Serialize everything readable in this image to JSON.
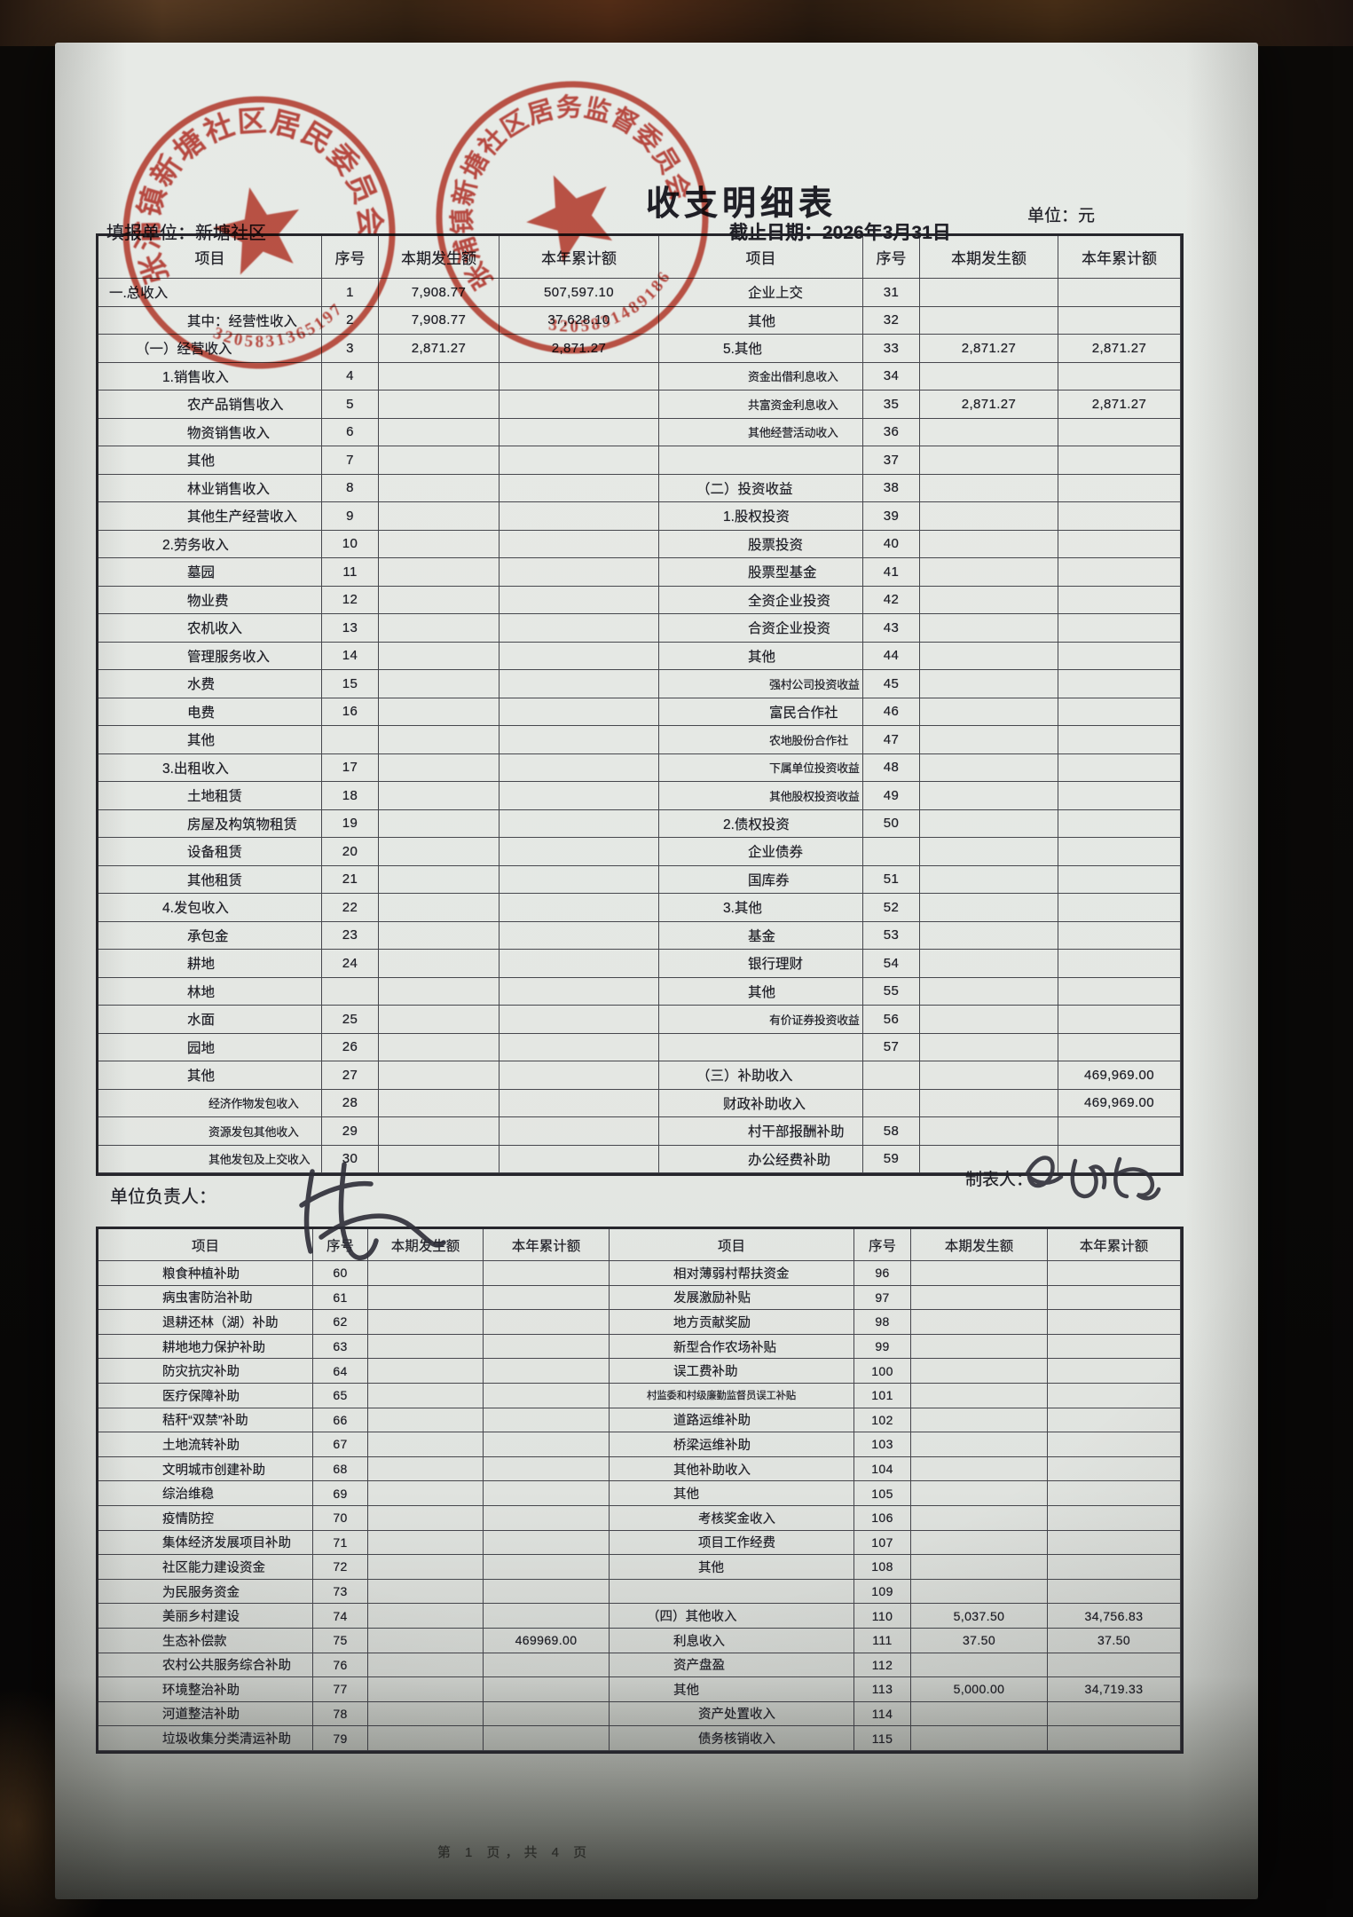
{
  "page": {
    "title": "收支明细表",
    "unit_note": "单位：元",
    "form_unit_label": "填报单位：",
    "form_unit_value": "新塘社区",
    "deadline_label": "截止日期：",
    "deadline_value": "2026年3月31日",
    "manager_label": "单位负责人：",
    "manager_signature": "陈",
    "preparer_label": "制表人：",
    "preparer_signature": "薄丽娟",
    "footer": "第 1 页，共 4 页"
  },
  "colors": {
    "stamp_red": "#c23a2c",
    "ink": "#1f1f26",
    "paper": "#e4e7e3"
  },
  "stamps": [
    {
      "arc_text": "张浦镇新塘社区居民委员会",
      "number": "3205831365197"
    },
    {
      "arc_text": "张浦镇新塘社区居务监督委员会",
      "number": "3205831489186"
    }
  ],
  "row_schema": [
    "item",
    "indent",
    "serial_no",
    "current_amount",
    "ytd_amount"
  ],
  "table1": {
    "headers": [
      "项目",
      "序号",
      "本期发生额",
      "本年累计额",
      "项目",
      "序号",
      "本期发生额",
      "本年累计额"
    ],
    "left_rows": [
      [
        "一.总收入",
        0,
        "1",
        "7,908.77",
        "507,597.10"
      ],
      [
        "其中：经营性收入",
        3,
        "2",
        "7,908.77",
        "37,628.10"
      ],
      [
        "（一）经营收入",
        1,
        "3",
        "2,871.27",
        "2,871.27"
      ],
      [
        "1.销售收入",
        2,
        "4",
        "",
        ""
      ],
      [
        "农产品销售收入",
        3,
        "5",
        "",
        ""
      ],
      [
        "物资销售收入",
        3,
        "6",
        "",
        ""
      ],
      [
        "其他",
        3,
        "7",
        "",
        ""
      ],
      [
        "林业销售收入",
        3,
        "8",
        "",
        ""
      ],
      [
        "其他生产经营收入",
        3,
        "9",
        "",
        ""
      ],
      [
        "2.劳务收入",
        2,
        "10",
        "",
        ""
      ],
      [
        "墓园",
        3,
        "11",
        "",
        ""
      ],
      [
        "物业费",
        3,
        "12",
        "",
        ""
      ],
      [
        "农机收入",
        3,
        "13",
        "",
        ""
      ],
      [
        "管理服务收入",
        3,
        "14",
        "",
        ""
      ],
      [
        "水费",
        3,
        "15",
        "",
        ""
      ],
      [
        "电费",
        3,
        "16",
        "",
        ""
      ],
      [
        "其他",
        3,
        "",
        "",
        ""
      ],
      [
        "3.出租收入",
        2,
        "17",
        "",
        ""
      ],
      [
        "土地租赁",
        3,
        "18",
        "",
        ""
      ],
      [
        "房屋及构筑物租赁",
        3,
        "19",
        "",
        ""
      ],
      [
        "设备租赁",
        3,
        "20",
        "",
        ""
      ],
      [
        "其他租赁",
        3,
        "21",
        "",
        ""
      ],
      [
        "4.发包收入",
        2,
        "22",
        "",
        ""
      ],
      [
        "承包金",
        3,
        "23",
        "",
        ""
      ],
      [
        "耕地",
        3,
        "24",
        "",
        ""
      ],
      [
        "林地",
        3,
        "",
        "",
        ""
      ],
      [
        "水面",
        3,
        "25",
        "",
        ""
      ],
      [
        "园地",
        3,
        "26",
        "",
        ""
      ],
      [
        "其他",
        3,
        "27",
        "",
        ""
      ],
      [
        "经济作物发包收入",
        4,
        "28",
        "",
        ""
      ],
      [
        "资源发包其他收入",
        4,
        "29",
        "",
        ""
      ],
      [
        "其他发包及上交收入",
        4,
        "30",
        "",
        ""
      ]
    ],
    "right_rows": [
      [
        "企业上交",
        3,
        "31",
        "",
        ""
      ],
      [
        "其他",
        3,
        "32",
        "",
        ""
      ],
      [
        "5.其他",
        2,
        "33",
        "2,871.27",
        "2,871.27"
      ],
      [
        "资金出借利息收入",
        3,
        "34",
        "",
        ""
      ],
      [
        "共富资金利息收入",
        3,
        "35",
        "2,871.27",
        "2,871.27"
      ],
      [
        "其他经营活动收入",
        3,
        "36",
        "",
        ""
      ],
      [
        "",
        0,
        "37",
        "",
        ""
      ],
      [
        "（二）投资收益",
        1,
        "38",
        "",
        ""
      ],
      [
        "1.股权投资",
        2,
        "39",
        "",
        ""
      ],
      [
        "股票投资",
        3,
        "40",
        "",
        ""
      ],
      [
        "股票型基金",
        3,
        "41",
        "",
        ""
      ],
      [
        "全资企业投资",
        3,
        "42",
        "",
        ""
      ],
      [
        "合资企业投资",
        3,
        "43",
        "",
        ""
      ],
      [
        "其他",
        3,
        "44",
        "",
        ""
      ],
      [
        "强村公司投资收益",
        4,
        "45",
        "",
        ""
      ],
      [
        "富民合作社",
        4,
        "46",
        "",
        ""
      ],
      [
        "农地股份合作社",
        4,
        "47",
        "",
        ""
      ],
      [
        "下属单位投资收益",
        4,
        "48",
        "",
        ""
      ],
      [
        "其他股权投资收益",
        4,
        "49",
        "",
        ""
      ],
      [
        "2.债权投资",
        2,
        "50",
        "",
        ""
      ],
      [
        "企业债券",
        3,
        "",
        "",
        ""
      ],
      [
        "国库券",
        3,
        "51",
        "",
        ""
      ],
      [
        "3.其他",
        2,
        "52",
        "",
        ""
      ],
      [
        "基金",
        3,
        "53",
        "",
        ""
      ],
      [
        "银行理财",
        3,
        "54",
        "",
        ""
      ],
      [
        "其他",
        3,
        "55",
        "",
        ""
      ],
      [
        "有价证券投资收益",
        4,
        "56",
        "",
        ""
      ],
      [
        "",
        0,
        "57",
        "",
        ""
      ],
      [
        "（三）补助收入",
        1,
        "",
        "",
        "469,969.00"
      ],
      [
        "财政补助收入",
        2,
        "",
        "",
        "469,969.00"
      ],
      [
        "村干部报酬补助",
        3,
        "58",
        "",
        ""
      ],
      [
        "办公经费补助",
        3,
        "59",
        "",
        ""
      ]
    ]
  },
  "table2": {
    "headers": [
      "项目",
      "序号",
      "本期发生额",
      "本年累计额",
      "项目",
      "序号",
      "本期发生额",
      "本年累计额"
    ],
    "left_rows": [
      [
        "粮食种植补助",
        2,
        "60",
        "",
        ""
      ],
      [
        "病虫害防治补助",
        2,
        "61",
        "",
        ""
      ],
      [
        "退耕还林（湖）补助",
        2,
        "62",
        "",
        ""
      ],
      [
        "耕地地力保护补助",
        2,
        "63",
        "",
        ""
      ],
      [
        "防灾抗灾补助",
        2,
        "64",
        "",
        ""
      ],
      [
        "医疗保障补助",
        2,
        "65",
        "",
        ""
      ],
      [
        "秸秆“双禁”补助",
        2,
        "66",
        "",
        ""
      ],
      [
        "土地流转补助",
        2,
        "67",
        "",
        ""
      ],
      [
        "文明城市创建补助",
        2,
        "68",
        "",
        ""
      ],
      [
        "综治维稳",
        2,
        "69",
        "",
        ""
      ],
      [
        "疫情防控",
        2,
        "70",
        "",
        ""
      ],
      [
        "集体经济发展项目补助",
        2,
        "71",
        "",
        ""
      ],
      [
        "社区能力建设资金",
        2,
        "72",
        "",
        ""
      ],
      [
        "为民服务资金",
        2,
        "73",
        "",
        ""
      ],
      [
        "美丽乡村建设",
        2,
        "74",
        "",
        ""
      ],
      [
        "生态补偿款",
        2,
        "75",
        "",
        "469969.00"
      ],
      [
        "农村公共服务综合补助",
        2,
        "76",
        "",
        ""
      ],
      [
        "环境整治补助",
        2,
        "77",
        "",
        ""
      ],
      [
        "河道整洁补助",
        2,
        "78",
        "",
        ""
      ],
      [
        "垃圾收集分类清运补助",
        2,
        "79",
        "",
        ""
      ]
    ],
    "right_rows": [
      [
        "相对薄弱村帮扶资金",
        2,
        "96",
        "",
        ""
      ],
      [
        "发展激励补贴",
        2,
        "97",
        "",
        ""
      ],
      [
        "地方贡献奖励",
        2,
        "98",
        "",
        ""
      ],
      [
        "新型合作农场补贴",
        2,
        "99",
        "",
        ""
      ],
      [
        "误工费补助",
        2,
        "100",
        "",
        ""
      ],
      [
        "村监委和村级廉勤监督员误工补贴",
        1,
        "101",
        "",
        ""
      ],
      [
        "道路运维补助",
        2,
        "102",
        "",
        ""
      ],
      [
        "桥梁运维补助",
        2,
        "103",
        "",
        ""
      ],
      [
        "其他补助收入",
        2,
        "104",
        "",
        ""
      ],
      [
        "其他",
        2,
        "105",
        "",
        ""
      ],
      [
        "考核奖金收入",
        3,
        "106",
        "",
        ""
      ],
      [
        "项目工作经费",
        3,
        "107",
        "",
        ""
      ],
      [
        "其他",
        3,
        "108",
        "",
        ""
      ],
      [
        "",
        0,
        "109",
        "",
        ""
      ],
      [
        "（四）其他收入",
        1,
        "110",
        "5,037.50",
        "34,756.83"
      ],
      [
        "利息收入",
        2,
        "111",
        "37.50",
        "37.50"
      ],
      [
        "资产盘盈",
        2,
        "112",
        "",
        ""
      ],
      [
        "其他",
        2,
        "113",
        "5,000.00",
        "34,719.33"
      ],
      [
        "资产处置收入",
        3,
        "114",
        "",
        ""
      ],
      [
        "债务核销收入",
        3,
        "115",
        "",
        ""
      ]
    ]
  }
}
